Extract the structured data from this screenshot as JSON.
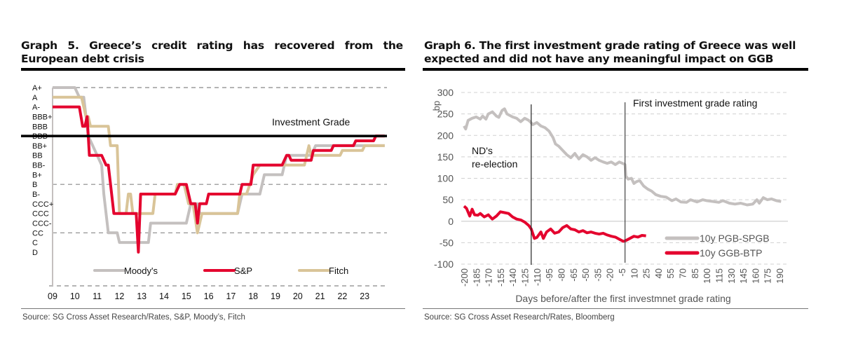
{
  "graph5": {
    "title": "Graph 5. Greece’s credit rating has recovered from the European debt crisis",
    "source": "Source: SG Cross Asset Research/Rates, S&P, Moody’s, Fitch"
  },
  "graph6": {
    "title": "Graph 6. The first investment grade rating of Greece was well expected and did not have any meaningful impact on GGB",
    "source": "Source: SG Cross Asset Research/Rates, Bloomberg"
  },
  "chart_data": [
    {
      "type": "line",
      "title": "Graph 5. Greece’s credit rating has recovered from the European debt crisis",
      "xlabel": "",
      "ylabel": "",
      "x_ticks": [
        "09",
        "10",
        "11",
        "12",
        "13",
        "14",
        "15",
        "16",
        "17",
        "18",
        "19",
        "20",
        "21",
        "22",
        "23"
      ],
      "xlim": [
        2009,
        2024
      ],
      "y_categories": [
        "A+",
        "A",
        "A-",
        "BBB+",
        "BBB",
        "BBB-",
        "BB+",
        "BB",
        "BB-",
        "B+",
        "B",
        "B-",
        "CCC+",
        "CCC",
        "CCC-",
        "CC",
        "C",
        "D"
      ],
      "dashed_levels": [
        "A+",
        "B",
        "CC"
      ],
      "reference_line": {
        "level": "BBB-",
        "label": "Investment Grade"
      },
      "legend": {
        "position": "bottom",
        "entries": [
          "Moody's",
          "S&P",
          "Fitch"
        ]
      },
      "colors": {
        "Moody's": "#c4c0bf",
        "S&P": "#e4032e",
        "Fitch": "#d9c498"
      },
      "series": [
        {
          "name": "Moody's",
          "points": [
            [
              2009.0,
              0
            ],
            [
              2010.0,
              0
            ],
            [
              2010.2,
              1
            ],
            [
              2010.4,
              1
            ],
            [
              2010.45,
              2
            ],
            [
              2010.6,
              5
            ],
            [
              2011.0,
              7
            ],
            [
              2011.2,
              8
            ],
            [
              2011.3,
              11
            ],
            [
              2011.5,
              15
            ],
            [
              2011.6,
              15
            ],
            [
              2011.9,
              15
            ],
            [
              2012.0,
              16
            ],
            [
              2013.3,
              16
            ],
            [
              2013.4,
              14
            ],
            [
              2014.5,
              14
            ],
            [
              2015.0,
              14
            ],
            [
              2015.2,
              12
            ],
            [
              2015.5,
              12
            ],
            [
              2015.6,
              13
            ],
            [
              2016.5,
              13
            ],
            [
              2017.0,
              13
            ],
            [
              2017.3,
              13
            ],
            [
              2017.5,
              11
            ],
            [
              2018.3,
              11
            ],
            [
              2018.5,
              9
            ],
            [
              2019.3,
              9
            ],
            [
              2019.5,
              7
            ],
            [
              2020.6,
              7
            ],
            [
              2020.8,
              6
            ],
            [
              2023.9,
              6
            ]
          ]
        },
        {
          "name": "S&P",
          "points": [
            [
              2009.0,
              2
            ],
            [
              2010.2,
              2
            ],
            [
              2010.35,
              4
            ],
            [
              2010.45,
              4
            ],
            [
              2010.55,
              3
            ],
            [
              2010.65,
              7
            ],
            [
              2011.2,
              7
            ],
            [
              2011.4,
              8
            ],
            [
              2011.5,
              8
            ],
            [
              2011.6,
              10
            ],
            [
              2011.75,
              13
            ],
            [
              2012.0,
              13
            ],
            [
              2012.6,
              13
            ],
            [
              2012.75,
              13
            ],
            [
              2012.85,
              17
            ],
            [
              2012.95,
              11
            ],
            [
              2014.5,
              11
            ],
            [
              2014.7,
              10
            ],
            [
              2015.0,
              10
            ],
            [
              2015.2,
              12
            ],
            [
              2015.4,
              12
            ],
            [
              2015.5,
              14
            ],
            [
              2015.6,
              12
            ],
            [
              2015.9,
              12
            ],
            [
              2016.0,
              11
            ],
            [
              2017.4,
              11
            ],
            [
              2017.5,
              10
            ],
            [
              2017.9,
              10
            ],
            [
              2018.0,
              8
            ],
            [
              2019.3,
              8
            ],
            [
              2019.5,
              7
            ],
            [
              2019.6,
              7
            ],
            [
              2019.7,
              7.5
            ],
            [
              2020.6,
              7.5
            ],
            [
              2020.7,
              6.5
            ],
            [
              2021.5,
              6.5
            ],
            [
              2021.6,
              6
            ],
            [
              2022.5,
              6
            ],
            [
              2022.6,
              5.5
            ],
            [
              2023.4,
              5.5
            ],
            [
              2023.5,
              5
            ],
            [
              2023.9,
              5
            ]
          ]
        },
        {
          "name": "Fitch",
          "points": [
            [
              2009.0,
              1
            ],
            [
              2010.3,
              1
            ],
            [
              2010.5,
              3
            ],
            [
              2010.6,
              3
            ],
            [
              2010.7,
              4
            ],
            [
              2011.5,
              4
            ],
            [
              2011.6,
              6
            ],
            [
              2011.9,
              6
            ],
            [
              2012.0,
              13
            ],
            [
              2012.3,
              13
            ],
            [
              2012.4,
              11
            ],
            [
              2012.5,
              11
            ],
            [
              2012.6,
              13
            ],
            [
              2013.5,
              13
            ],
            [
              2013.6,
              11
            ],
            [
              2014.5,
              11
            ],
            [
              2014.6,
              10
            ],
            [
              2014.9,
              10
            ],
            [
              2015.1,
              12
            ],
            [
              2015.3,
              12
            ],
            [
              2015.5,
              15
            ],
            [
              2015.7,
              13
            ],
            [
              2017.3,
              13
            ],
            [
              2017.4,
              11
            ],
            [
              2017.7,
              11
            ],
            [
              2018.0,
              9
            ],
            [
              2018.3,
              8
            ],
            [
              2019.4,
              8
            ],
            [
              2020.3,
              8
            ],
            [
              2020.5,
              6
            ],
            [
              2020.6,
              7
            ],
            [
              2021.9,
              7
            ],
            [
              2022.0,
              6.5
            ],
            [
              2022.9,
              6.5
            ],
            [
              2023.0,
              6
            ],
            [
              2023.9,
              6
            ]
          ]
        }
      ]
    },
    {
      "type": "line",
      "title": "Graph 6. The first investment grade rating of Greece was well expected and did not have any meaningful impact on GGB",
      "xlabel": "Days before/after the first investmnet grade rating",
      "ylabel": "bp",
      "ylim": [
        -100,
        300
      ],
      "y_ticks": [
        300,
        250,
        200,
        150,
        100,
        50,
        0,
        -50,
        -100
      ],
      "xlim": [
        -200,
        200
      ],
      "x_ticks": [
        -200,
        -185,
        -170,
        -155,
        -140,
        -125,
        -110,
        -95,
        -80,
        -65,
        -50,
        -35,
        -20,
        -5,
        10,
        25,
        40,
        55,
        70,
        85,
        100,
        115,
        130,
        145,
        160,
        175,
        190
      ],
      "grid": true,
      "annotations": [
        {
          "x": -117,
          "label_lines": [
            "ND's",
            "re-election"
          ]
        },
        {
          "x": -1,
          "label_lines": [
            "First investment grade rating"
          ]
        }
      ],
      "legend": {
        "position": "bottom-right",
        "entries": [
          "10y PGB-SPGB",
          "10y GGB-BTP"
        ]
      },
      "colors": {
        "10y PGB-SPGB": "#c4c0bf",
        "10y GGB-BTP": "#e4032e"
      },
      "series": [
        {
          "name": "10y PGB-SPGB",
          "points": [
            [
              -200,
              222
            ],
            [
              -198,
              215
            ],
            [
              -195,
              235
            ],
            [
              -190,
              240
            ],
            [
              -185,
              243
            ],
            [
              -180,
              238
            ],
            [
              -177,
              245
            ],
            [
              -173,
              238
            ],
            [
              -170,
              250
            ],
            [
              -165,
              255
            ],
            [
              -160,
              245
            ],
            [
              -157,
              242
            ],
            [
              -153,
              258
            ],
            [
              -150,
              262
            ],
            [
              -147,
              250
            ],
            [
              -140,
              243
            ],
            [
              -135,
              240
            ],
            [
              -130,
              232
            ],
            [
              -125,
              240
            ],
            [
              -120,
              235
            ],
            [
              -115,
              225
            ],
            [
              -110,
              230
            ],
            [
              -105,
              222
            ],
            [
              -100,
              218
            ],
            [
              -95,
              210
            ],
            [
              -90,
              195
            ],
            [
              -87,
              180
            ],
            [
              -83,
              175
            ],
            [
              -78,
              165
            ],
            [
              -73,
              155
            ],
            [
              -68,
              148
            ],
            [
              -63,
              158
            ],
            [
              -58,
              145
            ],
            [
              -53,
              155
            ],
            [
              -48,
              150
            ],
            [
              -43,
              142
            ],
            [
              -38,
              148
            ],
            [
              -33,
              142
            ],
            [
              -28,
              138
            ],
            [
              -23,
              135
            ],
            [
              -18,
              138
            ],
            [
              -13,
              132
            ],
            [
              -8,
              138
            ],
            [
              -3,
              134
            ],
            [
              -1,
              132
            ],
            [
              0,
              105
            ],
            [
              3,
              98
            ],
            [
              7,
              100
            ],
            [
              10,
              88
            ],
            [
              13,
              92
            ],
            [
              17,
              95
            ],
            [
              22,
              82
            ],
            [
              27,
              75
            ],
            [
              32,
              70
            ],
            [
              37,
              62
            ],
            [
              43,
              58
            ],
            [
              50,
              56
            ],
            [
              57,
              48
            ],
            [
              62,
              52
            ],
            [
              68,
              45
            ],
            [
              75,
              44
            ],
            [
              80,
              50
            ],
            [
              88,
              45
            ],
            [
              95,
              50
            ],
            [
              100,
              48
            ],
            [
              108,
              46
            ],
            [
              115,
              44
            ],
            [
              120,
              48
            ],
            [
              128,
              42
            ],
            [
              135,
              40
            ],
            [
              142,
              42
            ],
            [
              150,
              38
            ],
            [
              157,
              40
            ],
            [
              162,
              50
            ],
            [
              165,
              42
            ],
            [
              170,
              55
            ],
            [
              175,
              50
            ],
            [
              180,
              52
            ],
            [
              186,
              48
            ],
            [
              192,
              46
            ]
          ]
        },
        {
          "name": "10y GGB-BTP",
          "points": [
            [
              -200,
              35
            ],
            [
              -197,
              30
            ],
            [
              -193,
              12
            ],
            [
              -190,
              28
            ],
            [
              -187,
              15
            ],
            [
              -183,
              14
            ],
            [
              -180,
              18
            ],
            [
              -175,
              10
            ],
            [
              -170,
              15
            ],
            [
              -165,
              5
            ],
            [
              -160,
              12
            ],
            [
              -155,
              22
            ],
            [
              -150,
              20
            ],
            [
              -145,
              18
            ],
            [
              -140,
              10
            ],
            [
              -135,
              5
            ],
            [
              -130,
              3
            ],
            [
              -125,
              -2
            ],
            [
              -120,
              -10
            ],
            [
              -117,
              -18
            ],
            [
              -113,
              -40
            ],
            [
              -110,
              -38
            ],
            [
              -105,
              -25
            ],
            [
              -102,
              -40
            ],
            [
              -98,
              -25
            ],
            [
              -93,
              -18
            ],
            [
              -88,
              -28
            ],
            [
              -83,
              -25
            ],
            [
              -78,
              -15
            ],
            [
              -73,
              -10
            ],
            [
              -68,
              -18
            ],
            [
              -63,
              -20
            ],
            [
              -58,
              -25
            ],
            [
              -53,
              -22
            ],
            [
              -48,
              -27
            ],
            [
              -43,
              -25
            ],
            [
              -38,
              -28
            ],
            [
              -33,
              -30
            ],
            [
              -28,
              -28
            ],
            [
              -23,
              -32
            ],
            [
              -18,
              -35
            ],
            [
              -13,
              -37
            ],
            [
              -8,
              -42
            ],
            [
              -3,
              -47
            ],
            [
              0,
              -45
            ],
            [
              5,
              -40
            ],
            [
              10,
              -35
            ],
            [
              15,
              -37
            ],
            [
              20,
              -33
            ],
            [
              25,
              -34
            ]
          ]
        }
      ]
    }
  ]
}
